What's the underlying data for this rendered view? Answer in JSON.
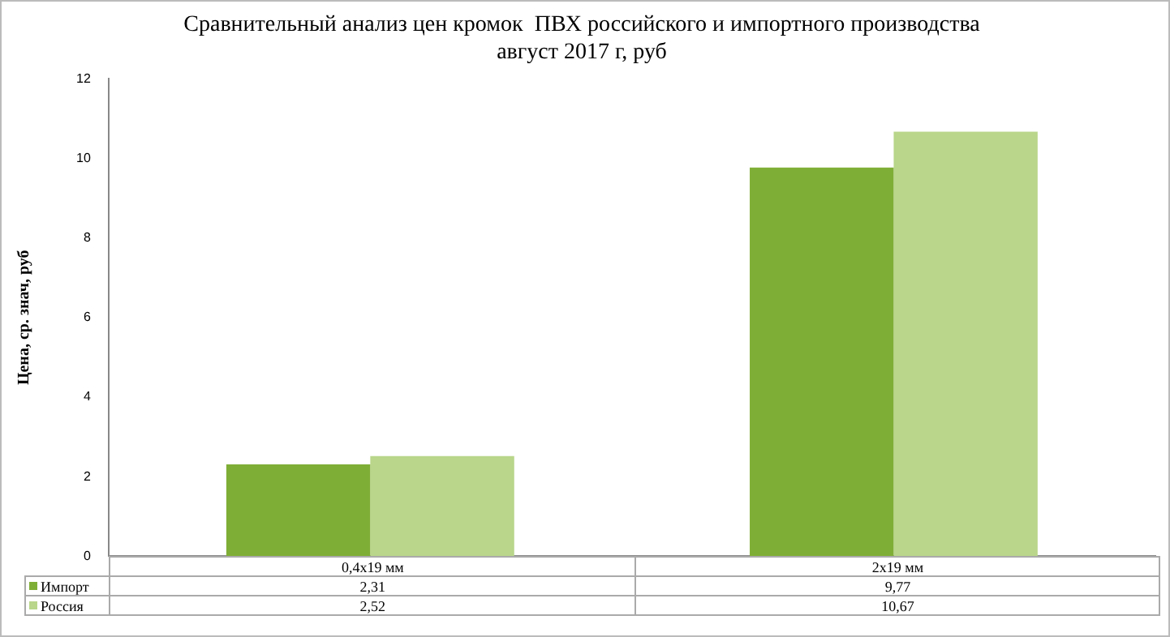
{
  "chart_data": {
    "type": "bar",
    "title": [
      "Сравнительный анализ цен кромок  ПВХ российского и импортного производства",
      "август 2017 г, руб"
    ],
    "ylabel": "Цена, ср. знач, руб",
    "categories": [
      "0,4х19 мм",
      "2х19 мм"
    ],
    "series": [
      {
        "name": "Импорт",
        "color": "#7fae36",
        "values": [
          2.31,
          9.77
        ],
        "value_labels": [
          "2,31",
          "9,77"
        ]
      },
      {
        "name": "Россия",
        "color": "#b9d68a",
        "values": [
          2.52,
          10.67
        ],
        "value_labels": [
          "2,52",
          "10,67"
        ]
      }
    ],
    "ylim": [
      0,
      12
    ],
    "yticks": [
      0,
      2,
      4,
      6,
      8,
      10,
      12
    ],
    "grid": false,
    "legend": "bottom"
  }
}
